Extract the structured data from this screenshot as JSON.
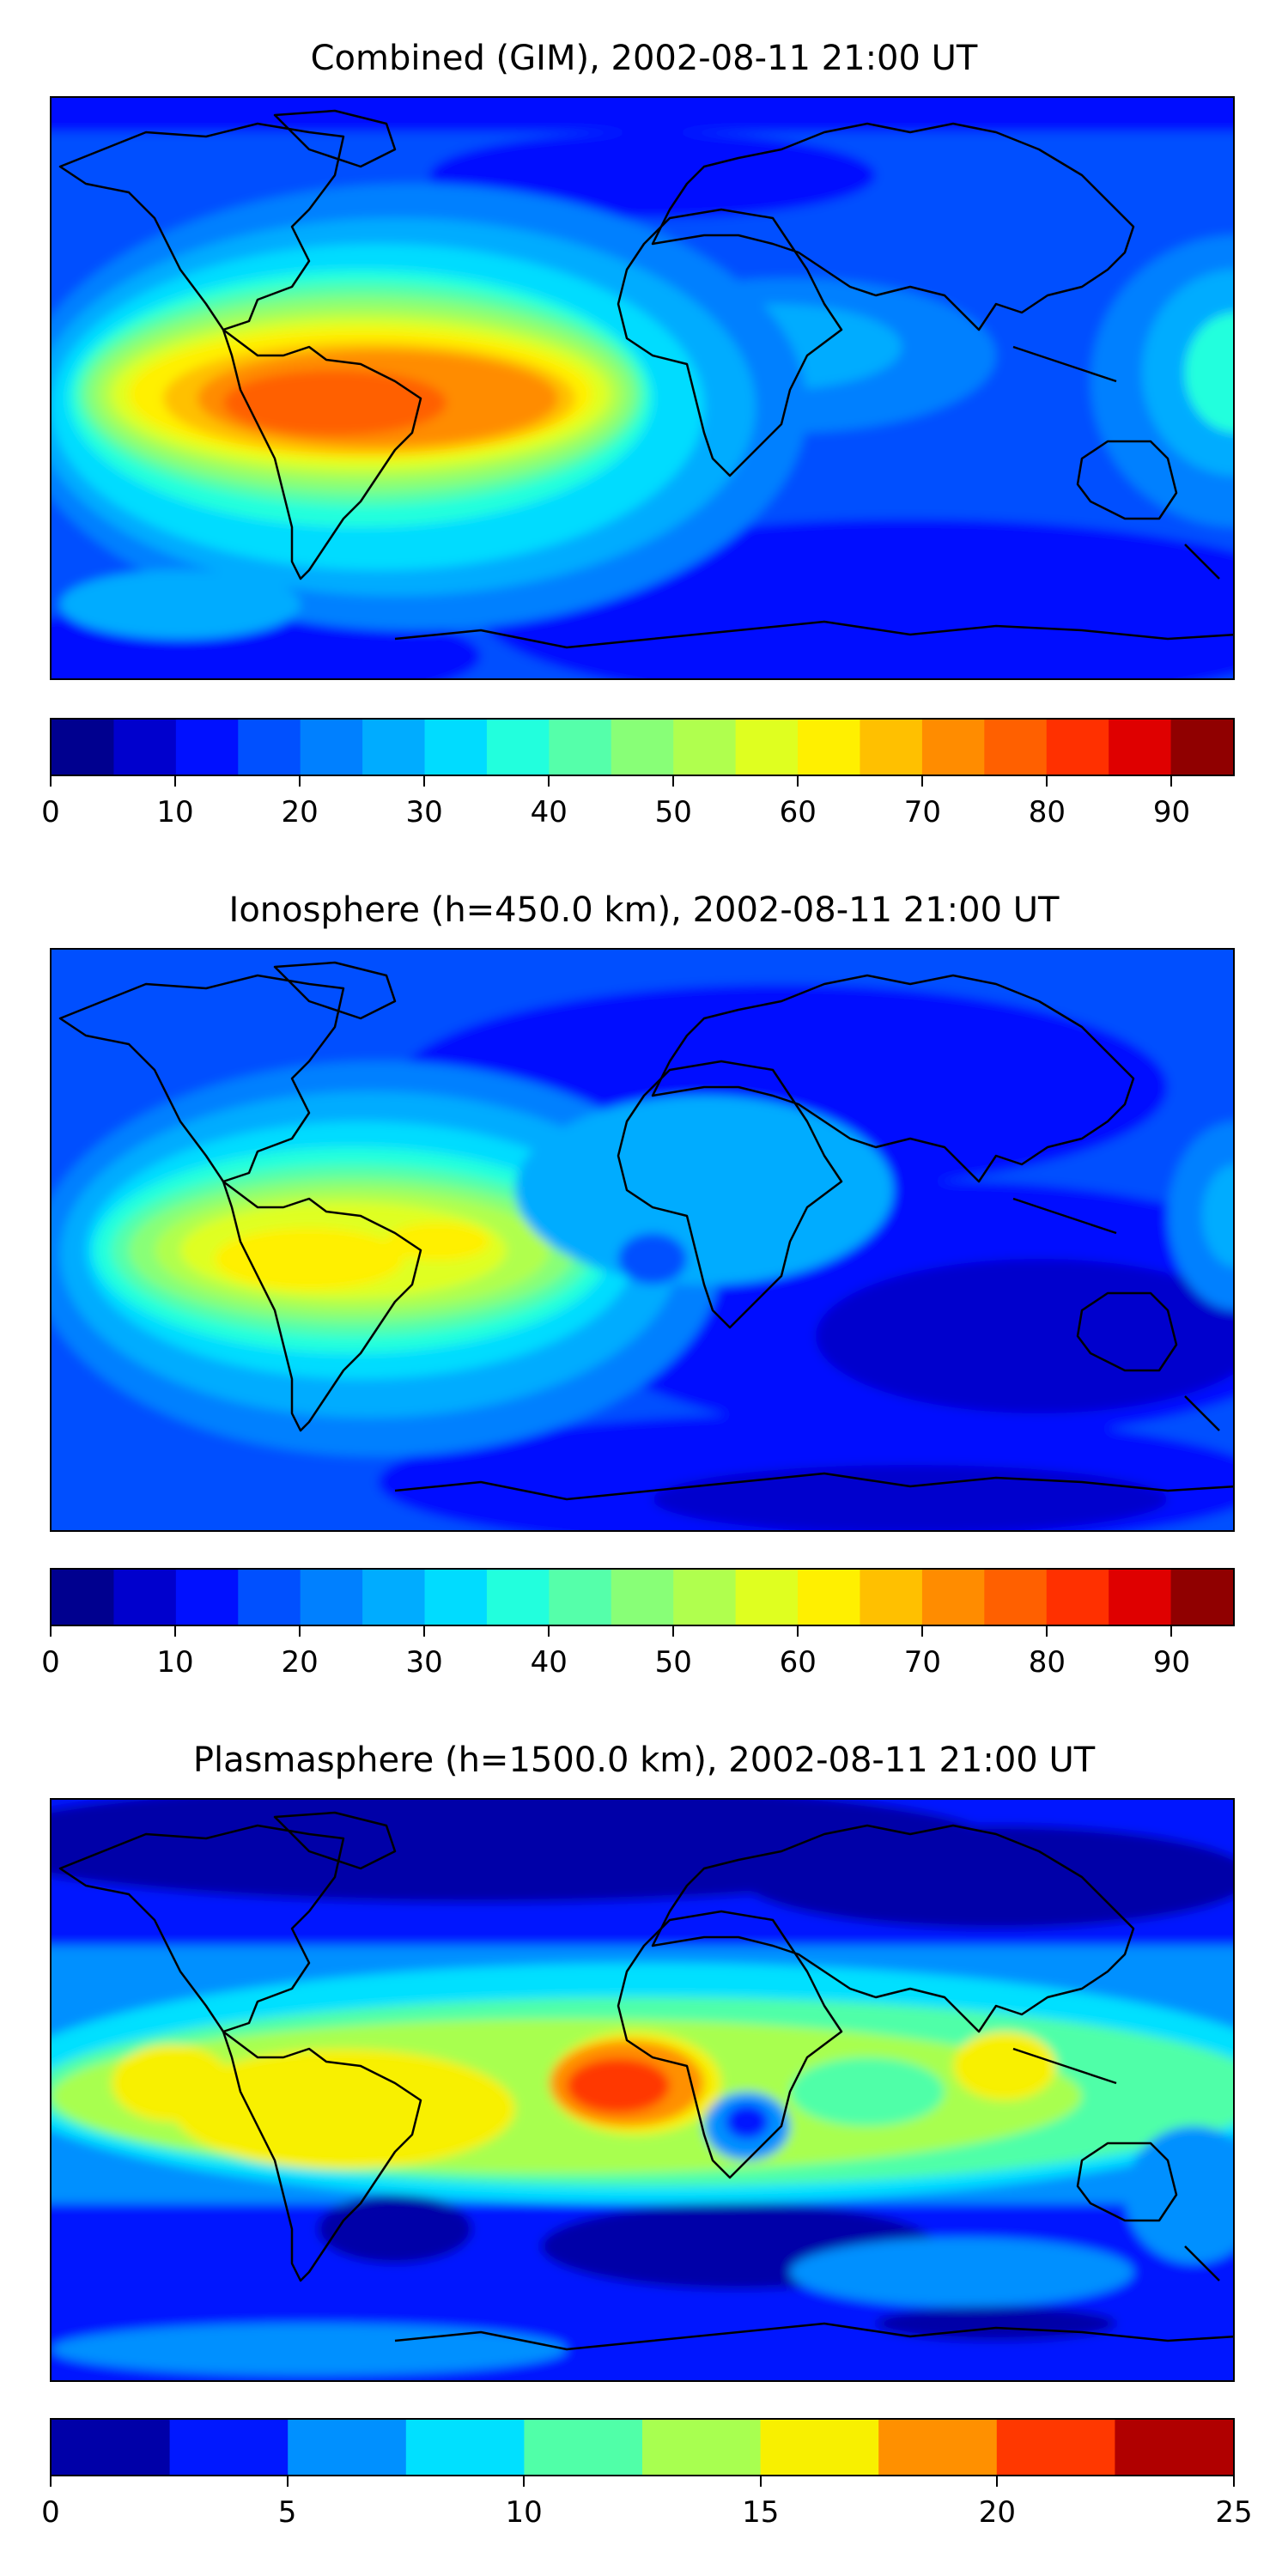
{
  "panels": [
    {
      "title": "Combined (GIM), 2002-08-11 21:00 UT",
      "colorbar": {
        "min": 0,
        "max": 95,
        "step": 5,
        "ticks": [
          "0",
          "10",
          "20",
          "30",
          "40",
          "50",
          "60",
          "70",
          "80",
          "90"
        ],
        "tick_values": [
          0,
          10,
          20,
          30,
          40,
          50,
          60,
          70,
          80,
          90
        ],
        "colors": [
          "#00008f",
          "#0000cd",
          "#0010ff",
          "#0050ff",
          "#0080ff",
          "#00acff",
          "#00dcff",
          "#22ffdd",
          "#55ffaa",
          "#88ff77",
          "#b0ff4e",
          "#dfff20",
          "#fff000",
          "#ffc000",
          "#ff8c00",
          "#ff6000",
          "#ff3000",
          "#df0000",
          "#900000"
        ]
      }
    },
    {
      "title": "Ionosphere  (h=450.0 km), 2002-08-11 21:00 UT",
      "colorbar": {
        "min": 0,
        "max": 95,
        "step": 5,
        "ticks": [
          "0",
          "10",
          "20",
          "30",
          "40",
          "50",
          "60",
          "70",
          "80",
          "90"
        ],
        "tick_values": [
          0,
          10,
          20,
          30,
          40,
          50,
          60,
          70,
          80,
          90
        ],
        "colors": [
          "#00008f",
          "#0000cd",
          "#0010ff",
          "#0050ff",
          "#0080ff",
          "#00acff",
          "#00dcff",
          "#22ffdd",
          "#55ffaa",
          "#88ff77",
          "#b0ff4e",
          "#dfff20",
          "#fff000",
          "#ffc000",
          "#ff8c00",
          "#ff6000",
          "#ff3000",
          "#df0000",
          "#900000"
        ]
      }
    },
    {
      "title": "Plasmasphere (h=1500.0 km), 2002-08-11 21:00 UT",
      "colorbar": {
        "min": 0,
        "max": 25,
        "step": 2.5,
        "ticks": [
          "0",
          "5",
          "10",
          "15",
          "20",
          "25"
        ],
        "tick_values": [
          0,
          5,
          10,
          15,
          20,
          25
        ],
        "colors": [
          "#0000a8",
          "#0018ff",
          "#0090ff",
          "#00e0ff",
          "#50ffa8",
          "#a8ff50",
          "#f8f000",
          "#ff9000",
          "#ff3800",
          "#b00000"
        ]
      }
    }
  ]
}
